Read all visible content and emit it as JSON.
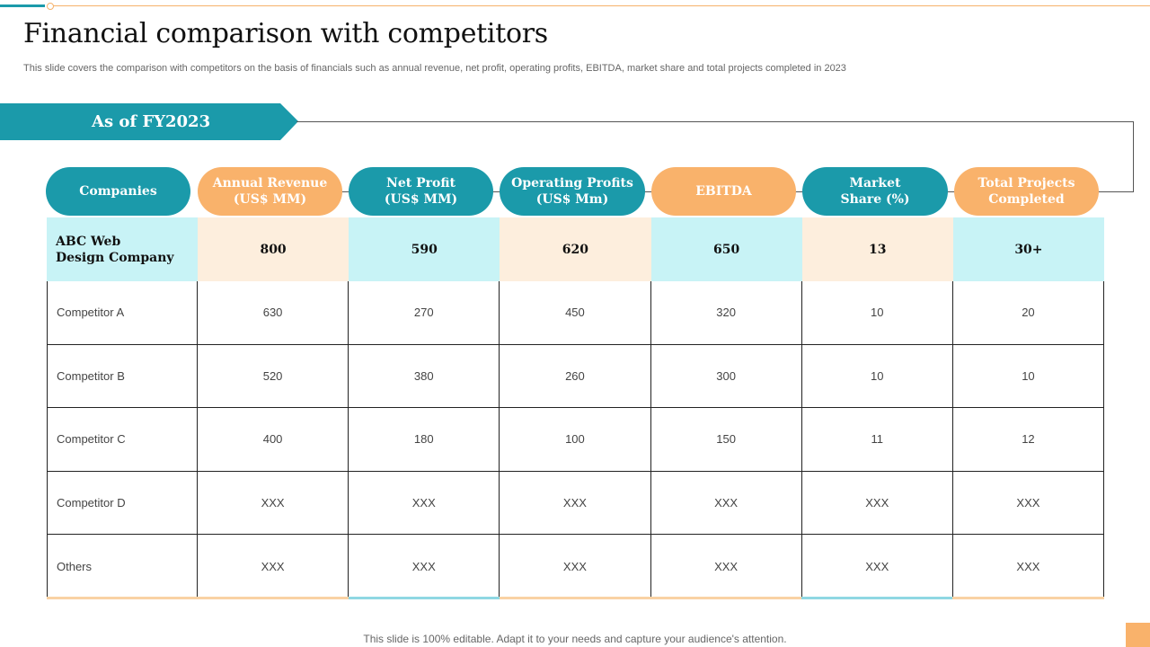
{
  "slide": {
    "title": "Financial comparison with competitors",
    "subtitle": "This slide covers the comparison with competitors on the basis of financials such as annual revenue, net profit, operating profits, EBITDA,  market share and total projects completed in 2023",
    "banner": "As of FY2023",
    "footer": "This slide is 100% editable. Adapt it to your needs and capture your audience's attention."
  },
  "colors": {
    "teal": "#1b9aaa",
    "orange": "#f9b26b",
    "cyan_bg": "#c8f3f6",
    "peach_bg": "#fdeedd"
  },
  "headers": [
    {
      "label": "Companies",
      "color": "teal"
    },
    {
      "label": "Annual Revenue\n(US$ MM)",
      "color": "orange"
    },
    {
      "label": "Net Profit\n(US$ MM)",
      "color": "teal"
    },
    {
      "label": "Operating Profits\n(US$ Mm)",
      "color": "teal"
    },
    {
      "label": "EBITDA",
      "color": "orange"
    },
    {
      "label": "Market\nShare (%)",
      "color": "teal"
    },
    {
      "label": "Total Projects\nCompleted",
      "color": "orange"
    }
  ],
  "highlight_row": {
    "company": "ABC Web\nDesign Company",
    "values": [
      "800",
      "590",
      "620",
      "650",
      "13",
      "30+"
    ]
  },
  "rows": [
    {
      "company": "Competitor  A",
      "values": [
        "630",
        "270",
        "450",
        "320",
        "10",
        "20"
      ]
    },
    {
      "company": "Competitor  B",
      "values": [
        "520",
        "380",
        "260",
        "300",
        "10",
        "10"
      ]
    },
    {
      "company": "Competitor  C",
      "values": [
        "400",
        "180",
        "100",
        "150",
        "11",
        "12"
      ]
    },
    {
      "company": "Competitor  D",
      "values": [
        "XXX",
        "XXX",
        "XXX",
        "XXX",
        "XXX",
        "XXX"
      ]
    },
    {
      "company": "Others",
      "values": [
        "XXX",
        "XXX",
        "XXX",
        "XXX",
        "XXX",
        "XXX"
      ]
    }
  ]
}
